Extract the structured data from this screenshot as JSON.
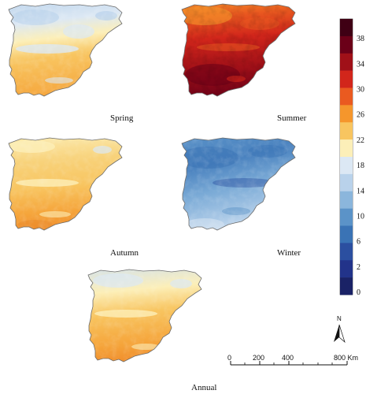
{
  "maps": [
    {
      "season": "Spring",
      "label": "Spring"
    },
    {
      "season": "Summer",
      "label": "Summer"
    },
    {
      "season": "Autumn",
      "label": "Autumn"
    },
    {
      "season": "Winter",
      "label": "Winter"
    },
    {
      "season": "Annual",
      "label": "Annual"
    }
  ],
  "legend": {
    "ticks": [
      "38",
      "34",
      "30",
      "26",
      "22",
      "18",
      "14",
      "10",
      "6",
      "2",
      "0"
    ],
    "colors": [
      "#3f0014",
      "#6b0018",
      "#a01018",
      "#d2261b",
      "#ea5a20",
      "#f5962c",
      "#f8c560",
      "#fcefb8",
      "#dce8f4",
      "#b9d2eb",
      "#8bb6dc",
      "#5b93c8",
      "#3a73b5",
      "#2b4fa0",
      "#22338a",
      "#1a2266"
    ]
  },
  "scalebar": {
    "ticks": [
      "0",
      "200",
      "400",
      "800 Km"
    ]
  },
  "north": {
    "label": "N"
  }
}
